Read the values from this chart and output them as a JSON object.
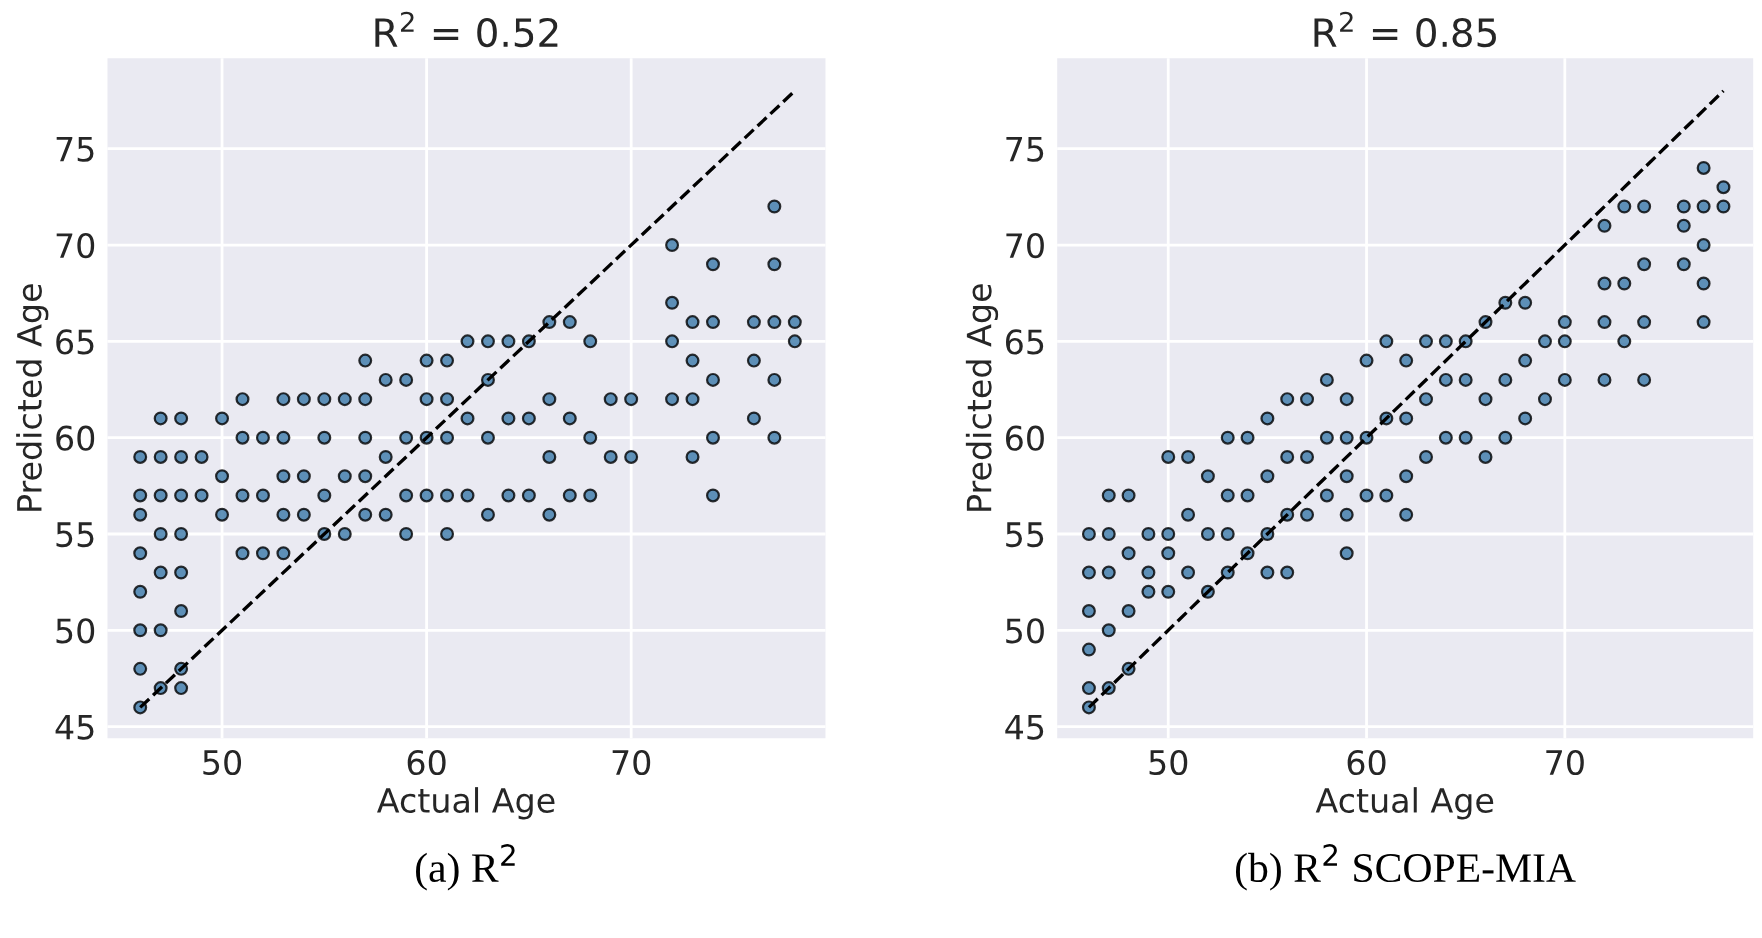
{
  "chart_data": [
    {
      "type": "scatter",
      "title": "R$^{2}$ = 0.52",
      "xlabel": "Actual Age",
      "ylabel": "Predicted Age",
      "xlim": [
        44.4,
        79.5
      ],
      "ylim": [
        44.4,
        79.7
      ],
      "xticks": [
        50,
        60,
        70
      ],
      "yticks": [
        45,
        50,
        55,
        60,
        65,
        70,
        75
      ],
      "grid": true,
      "marker": "circle",
      "annotations": [
        "(a) R$^{2}$"
      ],
      "series": [
        {
          "color": "#3a78a8",
          "x": [
            46,
            46,
            46,
            46,
            46,
            46,
            46,
            46,
            47,
            47,
            47,
            47,
            47,
            47,
            47,
            48,
            48,
            48,
            48,
            48,
            48,
            48,
            48,
            49,
            49,
            50,
            50,
            50,
            51,
            51,
            51,
            51,
            52,
            52,
            52,
            53,
            53,
            53,
            53,
            53,
            54,
            54,
            54,
            55,
            55,
            55,
            55,
            56,
            56,
            56,
            57,
            57,
            57,
            57,
            57,
            58,
            58,
            58,
            59,
            59,
            59,
            59,
            60,
            60,
            60,
            60,
            61,
            61,
            61,
            61,
            61,
            62,
            62,
            62,
            63,
            63,
            63,
            63,
            64,
            64,
            64,
            65,
            65,
            65,
            66,
            66,
            66,
            66,
            67,
            67,
            67,
            68,
            68,
            68,
            69,
            69,
            70,
            70,
            72,
            72,
            72,
            72,
            73,
            73,
            73,
            73,
            74,
            74,
            74,
            74,
            74,
            76,
            76,
            76,
            77,
            77,
            77,
            77,
            77,
            78,
            78
          ],
          "values": [
            46,
            48,
            50,
            52,
            54,
            56,
            57,
            59,
            47,
            50,
            53,
            55,
            57,
            59,
            61,
            47,
            48,
            51,
            53,
            55,
            57,
            59,
            61,
            57,
            59,
            56,
            58,
            61,
            54,
            57,
            60,
            62,
            54,
            57,
            60,
            54,
            56,
            58,
            60,
            62,
            56,
            58,
            62,
            55,
            57,
            60,
            62,
            55,
            58,
            62,
            56,
            58,
            60,
            62,
            64,
            56,
            59,
            63,
            55,
            57,
            60,
            63,
            57,
            60,
            62,
            64,
            55,
            57,
            60,
            62,
            64,
            57,
            61,
            65,
            56,
            60,
            63,
            65,
            57,
            61,
            65,
            57,
            61,
            65,
            56,
            59,
            62,
            66,
            57,
            61,
            66,
            57,
            60,
            65,
            59,
            62,
            59,
            62,
            62,
            65,
            67,
            70,
            59,
            62,
            64,
            66,
            57,
            60,
            63,
            66,
            69,
            61,
            64,
            66,
            60,
            63,
            66,
            69,
            72,
            65,
            66
          ]
        },
        {
          "type": "line",
          "color": "#000000",
          "line_style": "dashed",
          "marker": "none",
          "x": [
            46,
            78
          ],
          "values": [
            46,
            78
          ]
        }
      ]
    },
    {
      "type": "scatter",
      "title": "R$^{2}$ = 0.85",
      "xlabel": "Actual Age",
      "ylabel": "Predicted Age",
      "xlim": [
        44.4,
        79.5
      ],
      "ylim": [
        44.4,
        79.7
      ],
      "xticks": [
        50,
        60,
        70
      ],
      "yticks": [
        45,
        50,
        55,
        60,
        65,
        70,
        75
      ],
      "grid": true,
      "marker": "circle",
      "annotations": [
        "(b) R$^{2}$ SCOPE-MIA"
      ],
      "series": [
        {
          "color": "#3a78a8",
          "x": [
            46,
            46,
            46,
            46,
            46,
            46,
            47,
            47,
            47,
            47,
            47,
            48,
            48,
            48,
            48,
            49,
            49,
            49,
            50,
            50,
            50,
            50,
            51,
            51,
            51,
            52,
            52,
            52,
            53,
            53,
            53,
            53,
            54,
            54,
            54,
            55,
            55,
            55,
            55,
            56,
            56,
            56,
            56,
            57,
            57,
            57,
            58,
            58,
            58,
            59,
            59,
            59,
            59,
            59,
            60,
            60,
            60,
            61,
            61,
            61,
            62,
            62,
            62,
            62,
            63,
            63,
            63,
            64,
            64,
            64,
            65,
            65,
            65,
            66,
            66,
            66,
            67,
            67,
            67,
            68,
            68,
            68,
            69,
            69,
            70,
            70,
            70,
            72,
            72,
            72,
            72,
            73,
            73,
            73,
            74,
            74,
            74,
            74,
            76,
            76,
            76,
            77,
            77,
            77,
            77,
            77,
            78,
            78
          ],
          "values": [
            46,
            47,
            49,
            51,
            53,
            55,
            47,
            50,
            53,
            55,
            57,
            48,
            51,
            54,
            57,
            52,
            53,
            55,
            52,
            54,
            55,
            59,
            53,
            56,
            59,
            52,
            55,
            58,
            53,
            55,
            57,
            60,
            54,
            57,
            60,
            53,
            55,
            58,
            61,
            53,
            56,
            59,
            62,
            56,
            59,
            62,
            57,
            60,
            63,
            54,
            56,
            58,
            60,
            62,
            57,
            60,
            64,
            57,
            61,
            65,
            56,
            58,
            61,
            64,
            59,
            62,
            65,
            60,
            63,
            65,
            60,
            63,
            65,
            59,
            62,
            66,
            60,
            63,
            67,
            61,
            64,
            67,
            62,
            65,
            63,
            65,
            66,
            63,
            66,
            68,
            71,
            65,
            68,
            72,
            63,
            66,
            69,
            72,
            69,
            71,
            72,
            66,
            68,
            70,
            72,
            74,
            72,
            73
          ]
        },
        {
          "type": "line",
          "color": "#000000",
          "line_style": "dashed",
          "marker": "none",
          "x": [
            46,
            78
          ],
          "values": [
            46,
            78
          ]
        }
      ]
    }
  ]
}
